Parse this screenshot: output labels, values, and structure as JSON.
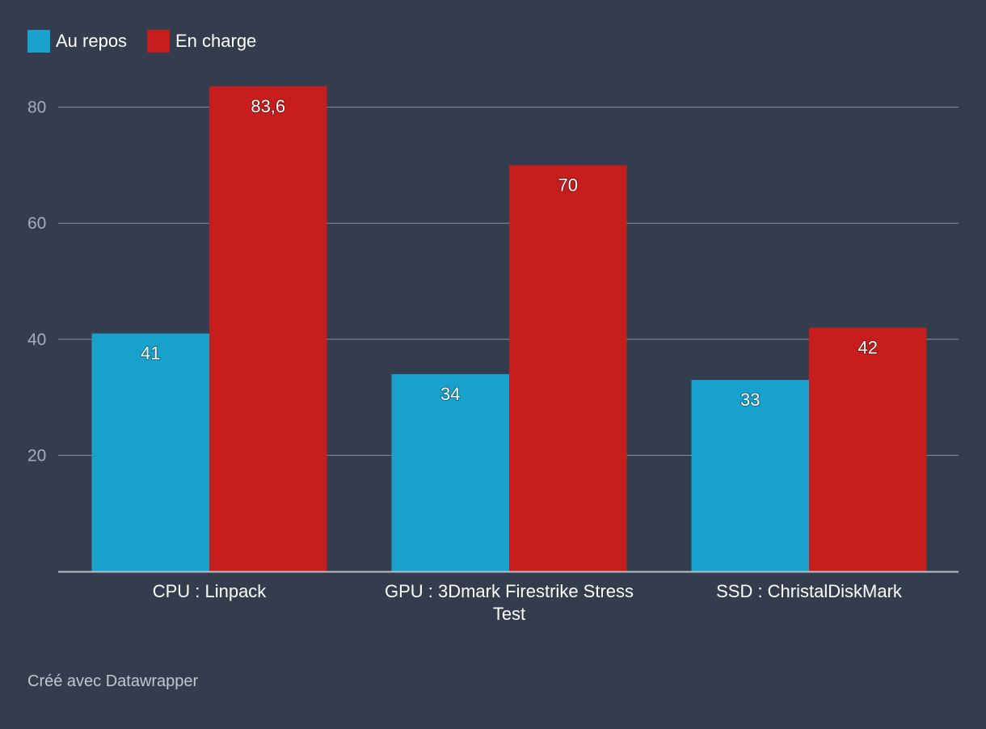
{
  "chart_data": {
    "type": "bar",
    "title": "",
    "xlabel": "",
    "ylabel": "",
    "categories": [
      [
        "CPU : Linpack"
      ],
      [
        "GPU : 3Dmark Firestrike Stress",
        "Test"
      ],
      [
        "SSD : ChristalDiskMark"
      ]
    ],
    "series": [
      {
        "name": "Au repos",
        "color": "#18a1cd",
        "values": [
          41,
          34,
          33
        ],
        "labels": [
          "41",
          "34",
          "33"
        ]
      },
      {
        "name": "En charge",
        "color": "#c71e1d",
        "values": [
          83.6,
          70,
          42
        ],
        "labels": [
          "83,6",
          "70",
          "42"
        ]
      }
    ],
    "ylim": [
      0,
      80
    ],
    "yticks": [
      20,
      40,
      60,
      80
    ],
    "grid": true,
    "legend": "top-left"
  },
  "footer": {
    "credit": "Créé avec Datawrapper"
  },
  "colors": {
    "background": "#333d4e",
    "gridline": "#8a919d",
    "axis": "#b9bec7"
  }
}
